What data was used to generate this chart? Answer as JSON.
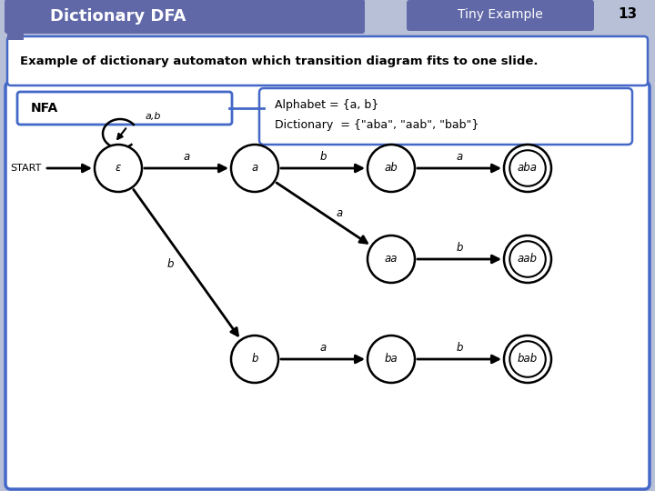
{
  "title": "Dictionary DFA",
  "subtitle": "Tiny Example",
  "slide_num": "13",
  "description": "Example of dictionary automaton which transition diagram fits to one slide.",
  "nfa_label": "NFA",
  "alphabet_line1": "Alphabet = {a, b}",
  "alphabet_line2": "Dictionary  = {\"aba\", \"aab\", \"bab\"}",
  "bg_color": "#b8c0d8",
  "header_color": "#6068a8",
  "box_border": "#4468c8",
  "white": "#ffffff",
  "state_labels": {
    "eps": "ε",
    "a": "a",
    "ab": "ab",
    "aba": "aba",
    "aa": "aa",
    "aab": "aab",
    "b": "b",
    "ba": "ba",
    "bab": "bab"
  },
  "accept_states": [
    "aba",
    "aab",
    "bab"
  ],
  "start_label": "START",
  "self_loop_label": "a,b"
}
